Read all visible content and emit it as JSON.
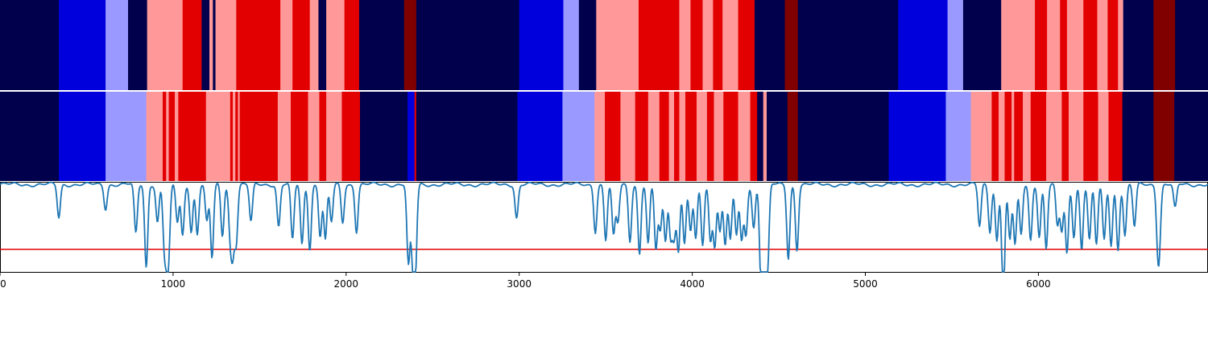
{
  "chart_data": [
    {
      "type": "heatmap",
      "title": "",
      "xlabel": "",
      "ylabel": "",
      "xlim": [
        0,
        6980
      ],
      "color_scale": {
        "0": "#00004c",
        "1": "#0000dd",
        "2": "#9999ff",
        "3": "#ff9999",
        "4": "#e20000",
        "5": "#800000"
      },
      "segments": [
        [
          0,
          340,
          0
        ],
        [
          340,
          610,
          1
        ],
        [
          610,
          740,
          2
        ],
        [
          740,
          850,
          0
        ],
        [
          850,
          1055,
          3
        ],
        [
          1055,
          1165,
          4
        ],
        [
          1165,
          1210,
          0
        ],
        [
          1210,
          1230,
          3
        ],
        [
          1230,
          1245,
          0
        ],
        [
          1245,
          1365,
          3
        ],
        [
          1365,
          1620,
          4
        ],
        [
          1620,
          1690,
          3
        ],
        [
          1690,
          1790,
          4
        ],
        [
          1790,
          1840,
          3
        ],
        [
          1840,
          1885,
          0
        ],
        [
          1885,
          1990,
          3
        ],
        [
          1990,
          2075,
          4
        ],
        [
          2075,
          2335,
          0
        ],
        [
          2335,
          2405,
          5
        ],
        [
          2405,
          3000,
          0
        ],
        [
          3000,
          3255,
          1
        ],
        [
          3255,
          3345,
          2
        ],
        [
          3345,
          3445,
          0
        ],
        [
          3445,
          3690,
          3
        ],
        [
          3690,
          3925,
          4
        ],
        [
          3925,
          3990,
          3
        ],
        [
          3990,
          4060,
          4
        ],
        [
          4060,
          4120,
          3
        ],
        [
          4120,
          4175,
          4
        ],
        [
          4175,
          4265,
          3
        ],
        [
          4265,
          4360,
          4
        ],
        [
          4360,
          4535,
          0
        ],
        [
          4535,
          4610,
          5
        ],
        [
          4610,
          5190,
          0
        ],
        [
          5190,
          5475,
          1
        ],
        [
          5475,
          5565,
          2
        ],
        [
          5565,
          5785,
          0
        ],
        [
          5785,
          5980,
          3
        ],
        [
          5980,
          6050,
          4
        ],
        [
          6050,
          6125,
          3
        ],
        [
          6125,
          6165,
          4
        ],
        [
          6165,
          6260,
          3
        ],
        [
          6260,
          6340,
          4
        ],
        [
          6340,
          6400,
          3
        ],
        [
          6400,
          6460,
          4
        ],
        [
          6460,
          6490,
          3
        ],
        [
          6490,
          6665,
          0
        ],
        [
          6665,
          6790,
          5
        ],
        [
          6790,
          6980,
          0
        ]
      ]
    },
    {
      "type": "heatmap",
      "title": "",
      "xlabel": "",
      "ylabel": "",
      "xlim": [
        0,
        6980
      ],
      "segments": [
        [
          0,
          340,
          0
        ],
        [
          340,
          610,
          1
        ],
        [
          610,
          845,
          2
        ],
        [
          845,
          940,
          3
        ],
        [
          940,
          960,
          4
        ],
        [
          960,
          975,
          3
        ],
        [
          975,
          1010,
          4
        ],
        [
          1010,
          1030,
          3
        ],
        [
          1030,
          1190,
          4
        ],
        [
          1190,
          1330,
          3
        ],
        [
          1330,
          1345,
          4
        ],
        [
          1345,
          1360,
          3
        ],
        [
          1360,
          1375,
          4
        ],
        [
          1375,
          1385,
          3
        ],
        [
          1385,
          1605,
          4
        ],
        [
          1605,
          1680,
          3
        ],
        [
          1680,
          1780,
          4
        ],
        [
          1780,
          1845,
          3
        ],
        [
          1845,
          1885,
          4
        ],
        [
          1885,
          1975,
          3
        ],
        [
          1975,
          2080,
          4
        ],
        [
          2080,
          2355,
          0
        ],
        [
          2355,
          2395,
          1
        ],
        [
          2395,
          2405,
          4
        ],
        [
          2405,
          2990,
          0
        ],
        [
          2990,
          3250,
          1
        ],
        [
          3250,
          3435,
          2
        ],
        [
          3435,
          3495,
          3
        ],
        [
          3495,
          3585,
          4
        ],
        [
          3585,
          3670,
          3
        ],
        [
          3670,
          3745,
          4
        ],
        [
          3745,
          3810,
          3
        ],
        [
          3810,
          3865,
          4
        ],
        [
          3865,
          3895,
          3
        ],
        [
          3895,
          3925,
          4
        ],
        [
          3925,
          3960,
          3
        ],
        [
          3960,
          4025,
          4
        ],
        [
          4025,
          4085,
          3
        ],
        [
          4085,
          4125,
          4
        ],
        [
          4125,
          4180,
          3
        ],
        [
          4180,
          4265,
          4
        ],
        [
          4265,
          4335,
          3
        ],
        [
          4335,
          4375,
          4
        ],
        [
          4375,
          4410,
          0
        ],
        [
          4410,
          4430,
          3
        ],
        [
          4430,
          4550,
          0
        ],
        [
          4550,
          4610,
          5
        ],
        [
          4610,
          5135,
          0
        ],
        [
          5135,
          5465,
          1
        ],
        [
          5465,
          5610,
          2
        ],
        [
          5610,
          5730,
          3
        ],
        [
          5730,
          5770,
          4
        ],
        [
          5770,
          5805,
          3
        ],
        [
          5805,
          5845,
          4
        ],
        [
          5845,
          5860,
          3
        ],
        [
          5860,
          5910,
          4
        ],
        [
          5910,
          5955,
          3
        ],
        [
          5955,
          6045,
          4
        ],
        [
          6045,
          6135,
          3
        ],
        [
          6135,
          6175,
          4
        ],
        [
          6175,
          6260,
          3
        ],
        [
          6260,
          6345,
          4
        ],
        [
          6345,
          6405,
          3
        ],
        [
          6405,
          6485,
          4
        ],
        [
          6485,
          6665,
          0
        ],
        [
          6665,
          6785,
          5
        ],
        [
          6785,
          6980,
          0
        ]
      ]
    },
    {
      "type": "line",
      "title": "",
      "xlabel": "",
      "ylabel": "",
      "xlim": [
        0,
        6980
      ],
      "ylim": [
        0,
        1
      ],
      "x_ticks": [
        "0",
        "1000",
        "2000",
        "3000",
        "4000",
        "5000",
        "6000"
      ],
      "x_tick_values": [
        0,
        1000,
        2000,
        3000,
        4000,
        5000,
        6000
      ],
      "threshold": 0.25,
      "baseline": 0.97,
      "dips": [
        [
          340,
          0.6
        ],
        [
          610,
          0.7
        ],
        [
          785,
          0.42
        ],
        [
          845,
          0.05
        ],
        [
          910,
          0.55
        ],
        [
          950,
          0.3
        ],
        [
          965,
          0.45
        ],
        [
          975,
          0.35
        ],
        [
          1025,
          0.55
        ],
        [
          1055,
          0.4
        ],
        [
          1105,
          0.45
        ],
        [
          1140,
          0.42
        ],
        [
          1195,
          0.55
        ],
        [
          1225,
          0.15
        ],
        [
          1285,
          0.4
        ],
        [
          1330,
          0.45
        ],
        [
          1345,
          0.3
        ],
        [
          1365,
          0.35
        ],
        [
          1450,
          0.55
        ],
        [
          1610,
          0.5
        ],
        [
          1690,
          0.35
        ],
        [
          1745,
          0.3
        ],
        [
          1790,
          0.25
        ],
        [
          1850,
          0.4
        ],
        [
          1880,
          0.35
        ],
        [
          1915,
          0.55
        ],
        [
          1980,
          0.55
        ],
        [
          2060,
          0.45
        ],
        [
          2360,
          0.08
        ],
        [
          2385,
          0.15
        ],
        [
          2400,
          0.05
        ],
        [
          2985,
          0.6
        ],
        [
          3440,
          0.45
        ],
        [
          3500,
          0.35
        ],
        [
          3545,
          0.4
        ],
        [
          3570,
          0.55
        ],
        [
          3640,
          0.35
        ],
        [
          3695,
          0.2
        ],
        [
          3745,
          0.3
        ],
        [
          3790,
          0.25
        ],
        [
          3815,
          0.45
        ],
        [
          3845,
          0.35
        ],
        [
          3875,
          0.4
        ],
        [
          3895,
          0.4
        ],
        [
          3920,
          0.25
        ],
        [
          3955,
          0.3
        ],
        [
          3990,
          0.45
        ],
        [
          4020,
          0.35
        ],
        [
          4060,
          0.3
        ],
        [
          4105,
          0.35
        ],
        [
          4130,
          0.3
        ],
        [
          4160,
          0.45
        ],
        [
          4190,
          0.3
        ],
        [
          4220,
          0.35
        ],
        [
          4255,
          0.4
        ],
        [
          4285,
          0.35
        ],
        [
          4310,
          0.4
        ],
        [
          4355,
          0.5
        ],
        [
          4395,
          0.3
        ],
        [
          4405,
          0.2
        ],
        [
          4420,
          0.05
        ],
        [
          4435,
          0.1
        ],
        [
          4555,
          0.15
        ],
        [
          4605,
          0.25
        ],
        [
          5660,
          0.5
        ],
        [
          5720,
          0.45
        ],
        [
          5760,
          0.35
        ],
        [
          5795,
          0.28
        ],
        [
          5800,
          0.4
        ],
        [
          5835,
          0.35
        ],
        [
          5865,
          0.3
        ],
        [
          5900,
          0.4
        ],
        [
          5955,
          0.35
        ],
        [
          6005,
          0.4
        ],
        [
          6045,
          0.25
        ],
        [
          6110,
          0.5
        ],
        [
          6135,
          0.45
        ],
        [
          6165,
          0.2
        ],
        [
          6205,
          0.4
        ],
        [
          6250,
          0.25
        ],
        [
          6295,
          0.35
        ],
        [
          6335,
          0.3
        ],
        [
          6380,
          0.35
        ],
        [
          6420,
          0.3
        ],
        [
          6460,
          0.25
        ],
        [
          6500,
          0.4
        ],
        [
          6555,
          0.5
        ],
        [
          6690,
          0.4
        ],
        [
          6700,
          0.5
        ],
        [
          6790,
          0.7
        ]
      ]
    }
  ]
}
